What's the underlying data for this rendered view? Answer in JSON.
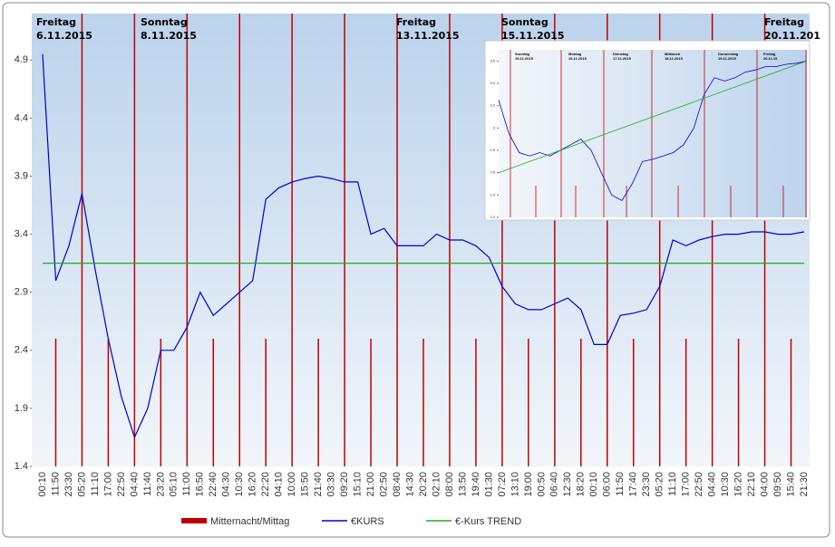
{
  "chart_data": [
    {
      "type": "line",
      "annotations": [
        [
          "Freitag",
          "6.11.2015"
        ],
        [
          "Sonntag",
          "8.11.2015"
        ],
        [
          "Freitag",
          "13.11.2015"
        ],
        [
          "Sonntag",
          "15.11.2015"
        ],
        [
          "Freitag",
          "20.11.201"
        ]
      ],
      "categories": [
        "00:10",
        "11:50",
        "23:30",
        "05:20",
        "11:10",
        "17:00",
        "22:50",
        "04:40",
        "11:40",
        "23:20",
        "05:10",
        "11:00",
        "16:50",
        "22:40",
        "04:30",
        "10:30",
        "16:20",
        "22:20",
        "04:10",
        "10:00",
        "15:50",
        "21:40",
        "03:30",
        "09:20",
        "15:10",
        "21:00",
        "02:50",
        "08:40",
        "14:30",
        "20:20",
        "02:10",
        "08:00",
        "13:50",
        "19:40",
        "01:30",
        "07:20",
        "13:10",
        "19:00",
        "00:50",
        "06:40",
        "12:30",
        "18:20",
        "00:10",
        "06:00",
        "11:50",
        "17:40",
        "23:30",
        "05:20",
        "11:10",
        "17:00",
        "22:50",
        "04:40",
        "10:30",
        "16:20",
        "22:10",
        "04:00",
        "09:50",
        "15:40",
        "21:30"
      ],
      "series": [
        {
          "name": "Mitternacht/Mittag",
          "type": "vline",
          "color": "#c00000",
          "values": [
            null,
            2.5,
            null,
            5.3,
            null,
            2.5,
            null,
            5.3,
            null,
            2.5,
            null,
            5.3,
            null,
            2.5,
            null,
            5.3,
            null,
            2.5,
            null,
            5.3,
            null,
            2.5,
            null,
            5.3,
            null,
            2.5,
            null,
            5.3,
            null,
            2.5,
            null,
            5.3,
            null,
            2.5,
            null,
            5.3,
            null,
            2.5,
            null,
            5.3,
            null,
            2.5,
            null,
            5.3,
            null,
            2.5,
            null,
            5.3,
            null,
            2.5,
            null,
            5.3,
            null,
            2.5,
            null,
            5.3,
            null,
            2.5,
            null
          ]
        },
        {
          "name": "€KURS",
          "type": "line",
          "color": "#0000cc",
          "values": [
            4.95,
            3.0,
            3.3,
            3.75,
            3.1,
            2.5,
            2.0,
            1.65,
            1.9,
            2.4,
            2.4,
            2.6,
            2.9,
            2.7,
            2.8,
            2.9,
            3.0,
            3.7,
            3.8,
            3.85,
            3.88,
            3.9,
            3.88,
            3.85,
            3.85,
            3.4,
            3.45,
            3.3,
            3.3,
            3.3,
            3.4,
            3.35,
            3.35,
            3.3,
            3.2,
            2.95,
            2.8,
            2.75,
            2.75,
            2.8,
            2.85,
            2.75,
            2.45,
            2.45,
            2.7,
            2.72,
            2.75,
            2.95,
            3.35,
            3.3,
            3.35,
            3.38,
            3.4,
            3.4,
            3.42,
            3.42,
            3.4,
            3.4,
            3.42
          ]
        },
        {
          "name": "€-Kurs TREND",
          "type": "line",
          "color": "#22aa22",
          "values": [
            3.15,
            3.15,
            3.15,
            3.15,
            3.15,
            3.15,
            3.15,
            3.15,
            3.15,
            3.15,
            3.15,
            3.15,
            3.15,
            3.15,
            3.15,
            3.15,
            3.15,
            3.15,
            3.15,
            3.15,
            3.15,
            3.15,
            3.15,
            3.15,
            3.15,
            3.15,
            3.15,
            3.15,
            3.15,
            3.15,
            3.15,
            3.15,
            3.15,
            3.15,
            3.15,
            3.15,
            3.15,
            3.15,
            3.15,
            3.15,
            3.15,
            3.15,
            3.15,
            3.15,
            3.15,
            3.15,
            3.15,
            3.15,
            3.15,
            3.15,
            3.15,
            3.15,
            3.15,
            3.15,
            3.15,
            3.15,
            3.15,
            3.15,
            3.15
          ]
        }
      ],
      "ylim": [
        1.4,
        5.3
      ],
      "yticks": [
        1.4,
        1.9,
        2.4,
        2.9,
        3.4,
        3.9,
        4.4,
        4.9
      ]
    },
    {
      "type": "line",
      "annotations": [
        [
          "Sonntag",
          "15.11.2015"
        ],
        [
          "Montag",
          "16.11.2015"
        ],
        [
          "Dienstag",
          "17.11.2015"
        ],
        [
          "Mittwoch",
          "18.11.2015"
        ],
        [
          "Donnerstag",
          "19.11.2015"
        ],
        [
          "Freitag",
          "20.11.15"
        ]
      ],
      "series": [
        {
          "name": "€KURS",
          "type": "line",
          "color": "#0000cc",
          "values": [
            3.25,
            2.95,
            2.78,
            2.75,
            2.78,
            2.75,
            2.8,
            2.85,
            2.9,
            2.8,
            2.6,
            2.4,
            2.35,
            2.5,
            2.7,
            2.72,
            2.75,
            2.78,
            2.85,
            3.0,
            3.3,
            3.45,
            3.42,
            3.45,
            3.5,
            3.52,
            3.55,
            3.55,
            3.57,
            3.58,
            3.6
          ]
        },
        {
          "name": "€-Kurs TREND",
          "type": "line",
          "color": "#22aa22",
          "values": [
            2.6,
            3.6
          ]
        }
      ],
      "ylim": [
        2.2,
        3.7
      ],
      "yticks": [
        2.2,
        2.4,
        2.6,
        2.8,
        {
          "value": 3,
          "label": "3"
        },
        3.2,
        3.4,
        3.6
      ]
    }
  ]
}
